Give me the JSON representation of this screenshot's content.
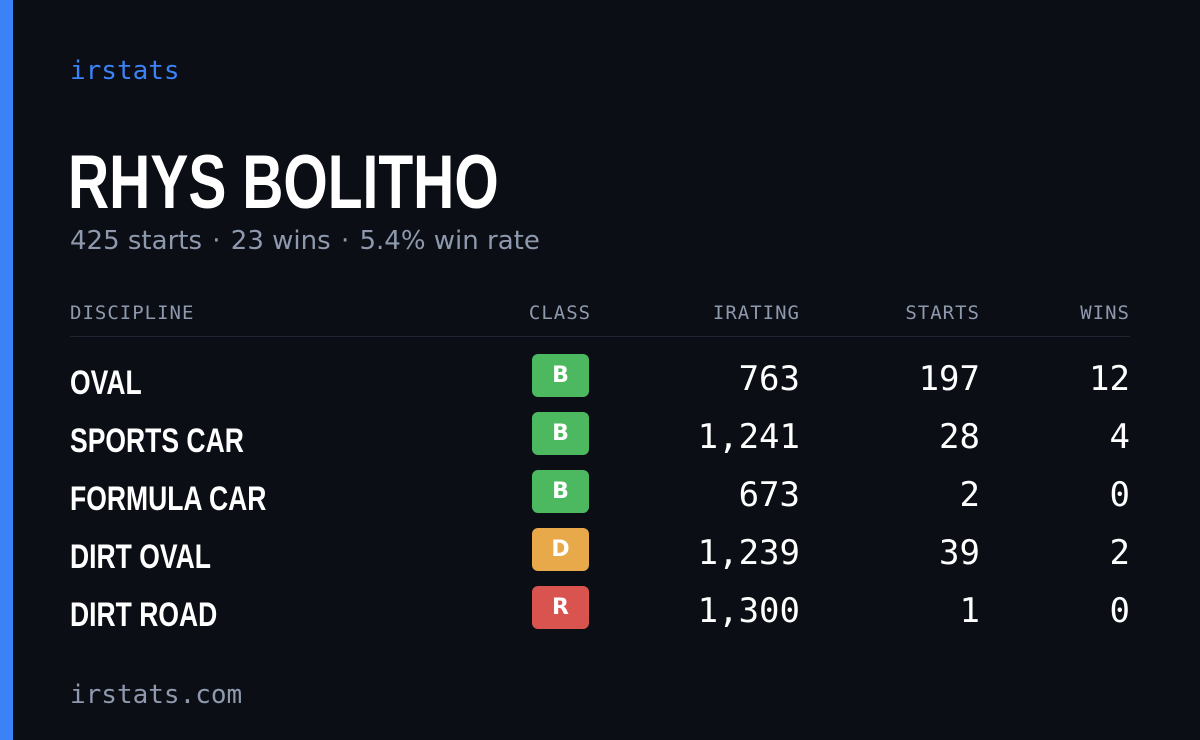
{
  "brand": "irstats",
  "driver": {
    "name": "RHYS BOLITHO",
    "starts_text": "425 starts",
    "wins_text": "23 wins",
    "win_rate_text": "5.4% win rate",
    "separator": "·"
  },
  "table": {
    "headers": {
      "discipline": "DISCIPLINE",
      "class": "CLASS",
      "irating": "IRATING",
      "starts": "STARTS",
      "wins": "WINS"
    },
    "rows": [
      {
        "discipline": "OVAL",
        "class": "B",
        "class_color": "#4cb860",
        "irating": "763",
        "starts": "197",
        "wins": "12"
      },
      {
        "discipline": "SPORTS CAR",
        "class": "B",
        "class_color": "#4cb860",
        "irating": "1,241",
        "starts": "28",
        "wins": "4"
      },
      {
        "discipline": "FORMULA CAR",
        "class": "B",
        "class_color": "#4cb860",
        "irating": "673",
        "starts": "2",
        "wins": "0"
      },
      {
        "discipline": "DIRT OVAL",
        "class": "D",
        "class_color": "#e8a94a",
        "irating": "1,239",
        "starts": "39",
        "wins": "2"
      },
      {
        "discipline": "DIRT ROAD",
        "class": "R",
        "class_color": "#d9534f",
        "irating": "1,300",
        "starts": "1",
        "wins": "0"
      }
    ]
  },
  "footer": "irstats.com",
  "colors": {
    "accent": "#3b82f6",
    "background": "#0b0e15",
    "muted_text": "#8e99ad"
  }
}
